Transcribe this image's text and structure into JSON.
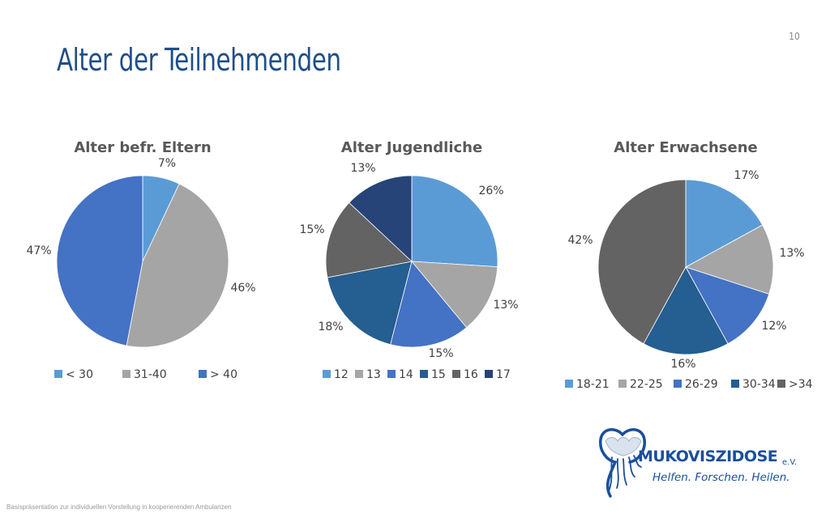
{
  "page_number": "10",
  "title": "Alter der Teilnehmenden",
  "footer": "Basispräsentation zur individuellen Vorstellung in kooperierenden Ambulanzen",
  "logo": {
    "name": "MUKOVISZIDOSE",
    "suffix": "e.V.",
    "slogan": "Helfen. Forschen. Heilen."
  },
  "chart_data": [
    {
      "type": "pie",
      "title": "Alter befr. Eltern",
      "categories": [
        "< 30",
        "31-40",
        "> 40"
      ],
      "values": [
        7,
        46,
        47
      ],
      "labels": [
        "7%",
        "46%",
        "47%"
      ],
      "colors": [
        "#5b9bd5",
        "#a5a5a5",
        "#4472c4"
      ],
      "legend": "bottom"
    },
    {
      "type": "pie",
      "title": "Alter Jugendliche",
      "categories": [
        "12",
        "13",
        "14",
        "15",
        "16",
        "17"
      ],
      "values": [
        26,
        13,
        15,
        18,
        15,
        13
      ],
      "labels": [
        "26%",
        "13%",
        "15%",
        "18%",
        "15%",
        "13%"
      ],
      "colors": [
        "#5b9bd5",
        "#a5a5a5",
        "#4472c4",
        "#255e91",
        "#636363",
        "#264478"
      ],
      "legend": "bottom"
    },
    {
      "type": "pie",
      "title": "Alter Erwachsene",
      "categories": [
        "18-21",
        "22-25",
        "26-29",
        "30-34",
        ">34"
      ],
      "values": [
        17,
        13,
        12,
        16,
        42
      ],
      "labels": [
        "17%",
        "13%",
        "12%",
        "16%",
        "42%"
      ],
      "colors": [
        "#5b9bd5",
        "#a5a5a5",
        "#4472c4",
        "#255e91",
        "#636363"
      ],
      "legend": "bottom"
    }
  ]
}
